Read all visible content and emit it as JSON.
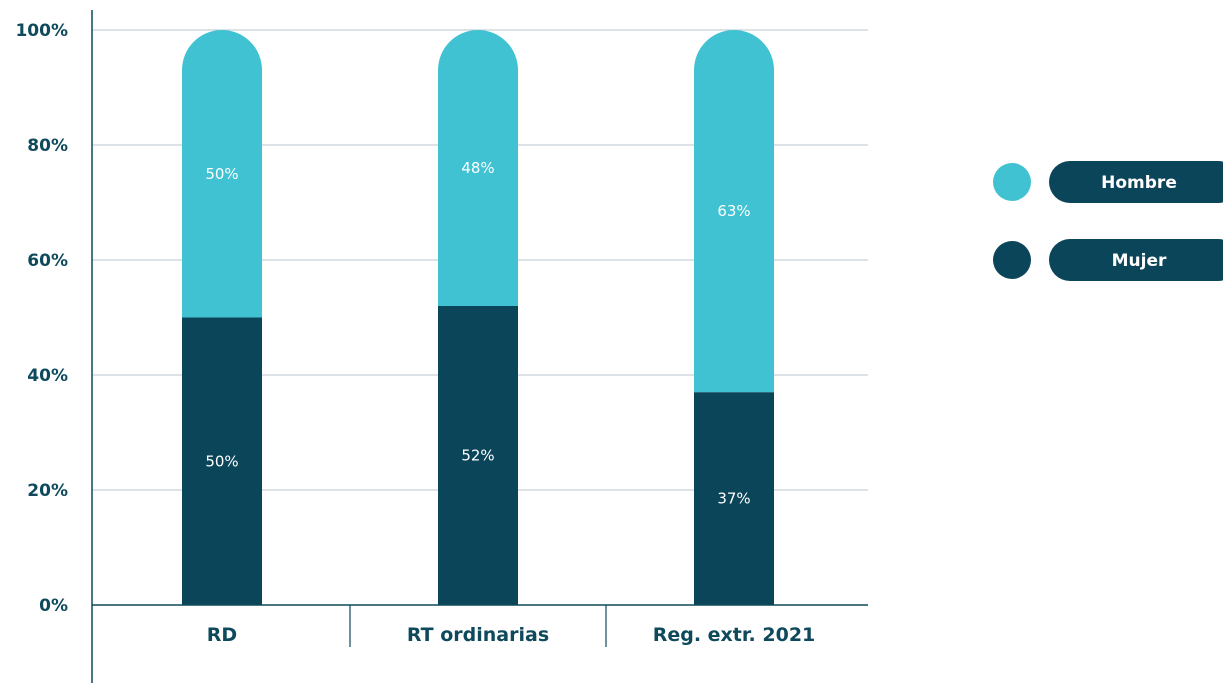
{
  "chart_data": {
    "type": "bar",
    "stacked": true,
    "categories": [
      "RD",
      "RT ordinarias",
      "Reg. extr. 2021"
    ],
    "series": [
      {
        "name": "Mujer",
        "values": [
          50,
          52,
          37
        ],
        "labels": [
          "50%",
          "52%",
          "37%"
        ],
        "color": "#0b4559"
      },
      {
        "name": "Hombre",
        "values": [
          50,
          48,
          63
        ],
        "labels": [
          "50%",
          "48%",
          "63%"
        ],
        "color": "#40c2d2"
      }
    ],
    "yticks": [
      {
        "value": 0,
        "label": "0%"
      },
      {
        "value": 20,
        "label": "20%"
      },
      {
        "value": 40,
        "label": "40%"
      },
      {
        "value": 60,
        "label": "60%"
      },
      {
        "value": 80,
        "label": "80%"
      },
      {
        "value": 100,
        "label": "100%"
      }
    ],
    "ylim": [
      0,
      100
    ],
    "grid": true,
    "legend": {
      "placement": "right",
      "items": [
        {
          "label": "Hombre",
          "color": "#40c2d2"
        },
        {
          "label": "Mujer",
          "color": "#0b4559"
        }
      ]
    },
    "colors": {
      "axis": "#0e4a5c",
      "grid": "#b8c7cd",
      "text": "#0e4a5c"
    }
  }
}
